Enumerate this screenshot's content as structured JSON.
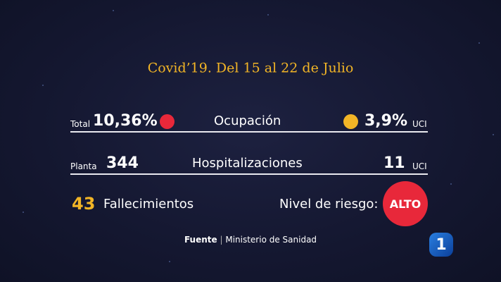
{
  "header": {
    "title": "Covid’19. Del 15 al 22 de Julio"
  },
  "rows": [
    {
      "left_label": "Total",
      "left_value": "10,36%",
      "title": "Ocupación",
      "right_value": "3,9%",
      "right_unit": "UCI"
    },
    {
      "left_label": "Planta",
      "left_value": "344",
      "title": "Hospitalizaciones",
      "right_value": "11",
      "right_unit": "UCI"
    },
    {
      "left_value": "43",
      "left_label": "Fallecimientos",
      "right_label": "Nivel de riesgo:",
      "right_value": "ALTO"
    }
  ],
  "source": {
    "label": "Fuente",
    "separator": "|",
    "text": "Ministerio de Sanidad"
  },
  "logo": {
    "text": "1"
  }
}
